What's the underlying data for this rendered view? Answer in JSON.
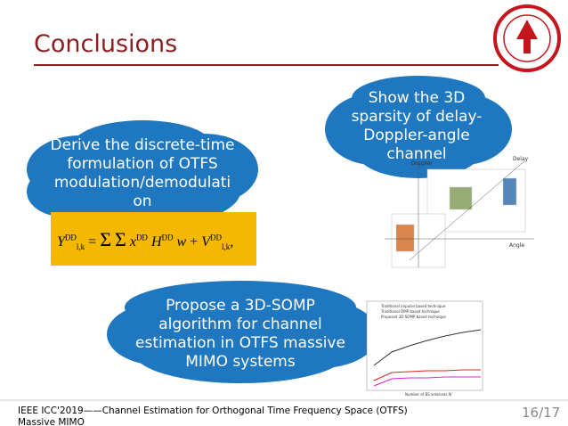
{
  "header": {
    "title": "Conclusions"
  },
  "clouds": [
    {
      "lines": [
        "Derive the discrete-time",
        "formulation of OTFS",
        "modulation/demodulati",
        "on"
      ]
    },
    {
      "lines": [
        "Show the 3D",
        "sparsity of delay-",
        "Doppler-angle",
        "channel"
      ]
    },
    {
      "lines": [
        "Propose a 3D-SOMP",
        "algorithm for channel",
        "estimation in OTFS massive",
        "MIMO systems"
      ]
    }
  ],
  "equation": {
    "parts": [
      "Y",
      "DD",
      "l,k",
      "=",
      "Σ",
      "Σ",
      "x",
      "DD",
      "H",
      "DD",
      "w",
      "+",
      "V",
      "DD",
      "l,k",
      ","
    ]
  },
  "figure_3d": {
    "axis_labels": [
      "Delay",
      "Angle",
      "Doppler"
    ]
  },
  "figure_chart": {
    "legend": [
      "Traditional impulse based technique",
      "Traditional OMP based technique",
      "Proposed 3D-SOMP based technique"
    ],
    "x_label": "Number of BS antennas N"
  },
  "footer": {
    "text": "IEEE ICC'2019——Channel Estimation for Orthogonal Time Frequency Space (OTFS) Massive MIMO",
    "page": "16/17"
  }
}
